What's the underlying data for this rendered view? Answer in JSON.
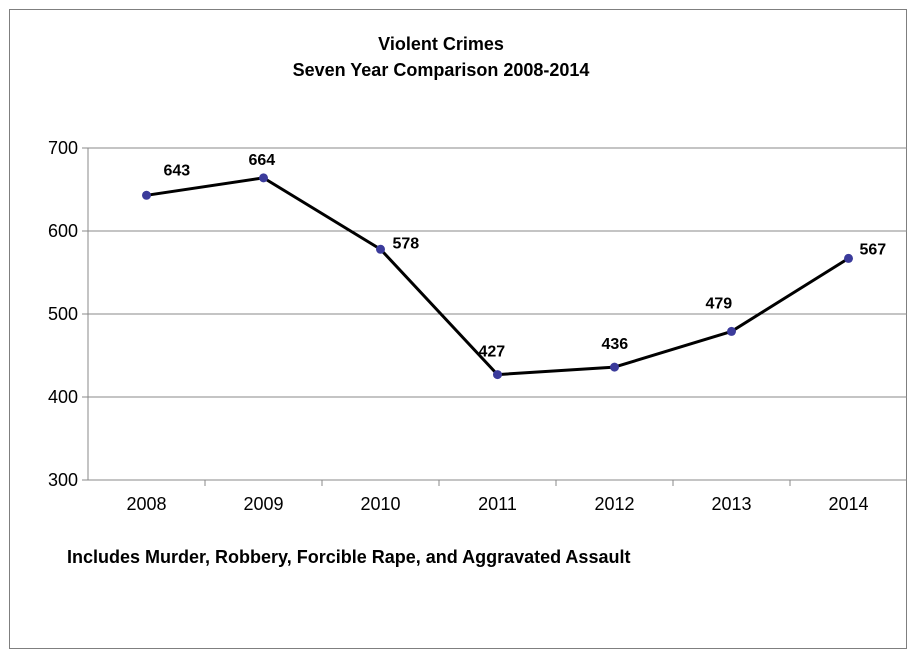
{
  "chart_data": {
    "type": "line",
    "title": "Violent Crimes",
    "subtitle": "Seven Year Comparison 2008-2014",
    "categories": [
      "2008",
      "2009",
      "2010",
      "2011",
      "2012",
      "2013",
      "2014"
    ],
    "series": [
      {
        "values": [
          643,
          664,
          578,
          427,
          436,
          479,
          567
        ]
      }
    ],
    "data_labels": [
      "643",
      "664",
      "578",
      "427",
      "436",
      "479",
      "567"
    ],
    "ylim": [
      300,
      700
    ],
    "yticks": [
      "300",
      "400",
      "500",
      "600",
      "700"
    ],
    "grid": true,
    "legend": "none",
    "line_color": "#000000",
    "marker_color": "#3b3b9b",
    "annotation": "Includes Murder, Robbery, Forcible Rape, and Aggravated Assault"
  }
}
